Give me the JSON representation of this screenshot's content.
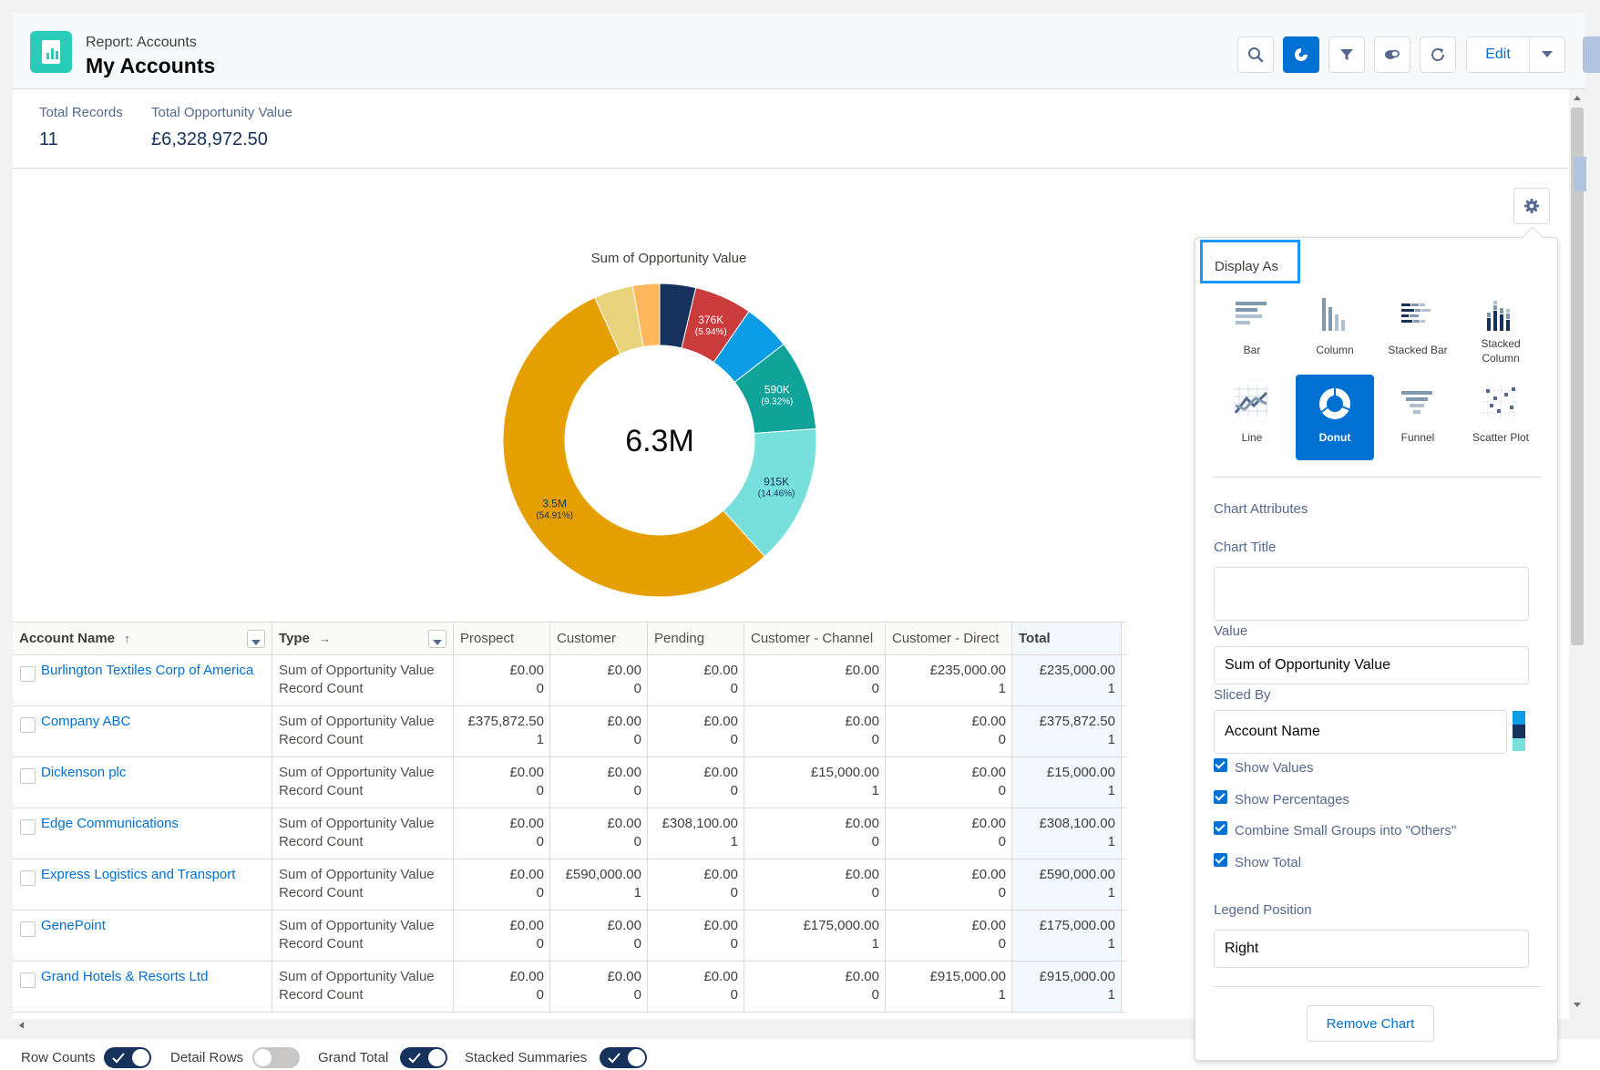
{
  "header": {
    "subtitle": "Report: Accounts",
    "title": "My Accounts",
    "edit_label": "Edit"
  },
  "summary": {
    "total_records_label": "Total Records",
    "total_records_value": "11",
    "total_value_label": "Total Opportunity Value",
    "total_value_value": "£6,328,972.50"
  },
  "chart_data": {
    "type": "pie",
    "variant": "donut",
    "title": "Sum of Opportunity Value",
    "center_total": "6.3M",
    "slices": [
      {
        "value": 235000,
        "color": "#16325c",
        "label": "",
        "pct": ""
      },
      {
        "value": 375872.5,
        "color": "#ca3b3b",
        "label": "376K",
        "pct": "(5.94%)"
      },
      {
        "value": 308100,
        "color": "#0b9ce5",
        "label": "",
        "pct": ""
      },
      {
        "value": 590000,
        "color": "#10a39a",
        "label": "590K",
        "pct": "(9.32%)"
      },
      {
        "value": 915000,
        "color": "#78e0dc",
        "label": "915K",
        "pct": "(14.46%)"
      },
      {
        "value": 3475000,
        "color": "#e69f00",
        "label": "3.5M",
        "pct": "(54.91%)"
      },
      {
        "value": 255000,
        "color": "#e8d27b",
        "label": "",
        "pct": ""
      },
      {
        "value": 175000,
        "color": "#ffb75d",
        "label": "",
        "pct": ""
      }
    ],
    "legend": "none",
    "colors": [
      "#16325c",
      "#ca3b3b",
      "#0b9ce5",
      "#10a39a",
      "#78e0dc",
      "#e69f00",
      "#e8d27b",
      "#ffb75d"
    ]
  },
  "table": {
    "columns": [
      "Account Name",
      "Type",
      "Prospect",
      "Customer",
      "Pending",
      "Customer - Channel",
      "Customer - Direct",
      "Total"
    ],
    "measure_labels": [
      "Sum of Opportunity Value",
      "Record Count"
    ],
    "rows": [
      {
        "name": "Burlington Textiles Corp of America",
        "vals": [
          "£0.00",
          "£0.00",
          "£0.00",
          "£0.00",
          "£235,000.00",
          "£235,000.00"
        ],
        "counts": [
          "0",
          "0",
          "0",
          "0",
          "1",
          "1"
        ]
      },
      {
        "name": "Company ABC",
        "vals": [
          "£375,872.50",
          "£0.00",
          "£0.00",
          "£0.00",
          "£0.00",
          "£375,872.50"
        ],
        "counts": [
          "1",
          "0",
          "0",
          "0",
          "0",
          "1"
        ]
      },
      {
        "name": "Dickenson plc",
        "vals": [
          "£0.00",
          "£0.00",
          "£0.00",
          "£15,000.00",
          "£0.00",
          "£15,000.00"
        ],
        "counts": [
          "0",
          "0",
          "0",
          "1",
          "0",
          "1"
        ]
      },
      {
        "name": "Edge Communications",
        "vals": [
          "£0.00",
          "£0.00",
          "£308,100.00",
          "£0.00",
          "£0.00",
          "£308,100.00"
        ],
        "counts": [
          "0",
          "0",
          "1",
          "0",
          "0",
          "1"
        ]
      },
      {
        "name": "Express Logistics and Transport",
        "vals": [
          "£0.00",
          "£590,000.00",
          "£0.00",
          "£0.00",
          "£0.00",
          "£590,000.00"
        ],
        "counts": [
          "0",
          "1",
          "0",
          "0",
          "0",
          "1"
        ]
      },
      {
        "name": "GenePoint",
        "vals": [
          "£0.00",
          "£0.00",
          "£0.00",
          "£175,000.00",
          "£0.00",
          "£175,000.00"
        ],
        "counts": [
          "0",
          "0",
          "0",
          "1",
          "0",
          "1"
        ]
      },
      {
        "name": "Grand Hotels & Resorts Ltd",
        "vals": [
          "£0.00",
          "£0.00",
          "£0.00",
          "£0.00",
          "£915,000.00",
          "£915,000.00"
        ],
        "counts": [
          "0",
          "0",
          "0",
          "0",
          "1",
          "1"
        ]
      }
    ]
  },
  "bottom": {
    "row_counts": "Row Counts",
    "detail_rows": "Detail Rows",
    "grand_total": "Grand Total",
    "stacked_summaries": "Stacked Summaries"
  },
  "panel": {
    "display_as": "Display As",
    "types": [
      "Bar",
      "Column",
      "Stacked Bar",
      "Stacked Column",
      "Line",
      "Donut",
      "Funnel",
      "Scatter Plot"
    ],
    "selected_type": "Donut",
    "chart_attributes": "Chart Attributes",
    "chart_title_label": "Chart Title",
    "chart_title_value": "",
    "value_label": "Value",
    "value_value": "Sum of Opportunity Value",
    "sliced_by_label": "Sliced By",
    "sliced_by_value": "Account Name",
    "show_values": "Show Values",
    "show_percentages": "Show Percentages",
    "combine_small": "Combine Small Groups into \"Others\"",
    "show_total": "Show Total",
    "legend_position_label": "Legend Position",
    "legend_position_value": "Right",
    "remove_chart": "Remove Chart"
  }
}
